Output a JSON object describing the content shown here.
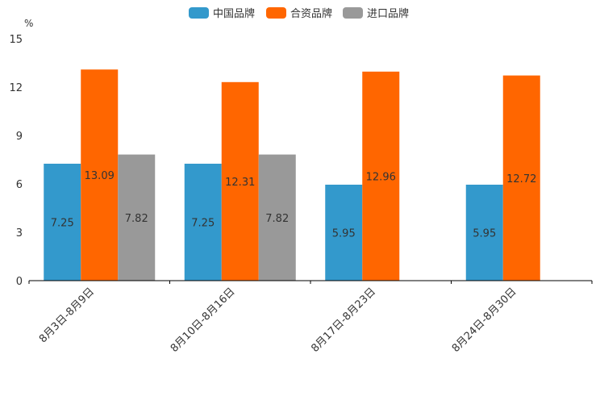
{
  "chart_data": {
    "type": "bar",
    "y_unit": "%",
    "ylim": [
      0,
      15
    ],
    "yticks": [
      0,
      3,
      6,
      9,
      12,
      15
    ],
    "categories": [
      "8月3日-8月9日",
      "8月10日-8月16日",
      "8月17日-8月23日",
      "8月24日-8月30日"
    ],
    "series": [
      {
        "name": "中国品牌",
        "color": "#3399cc",
        "values": [
          7.25,
          7.25,
          5.95,
          5.95
        ]
      },
      {
        "name": "合资品牌",
        "color": "#ff6600",
        "values": [
          13.09,
          12.31,
          12.96,
          12.72
        ]
      },
      {
        "name": "进口品牌",
        "color": "#999999",
        "values": [
          7.82,
          7.82,
          null,
          null
        ]
      }
    ],
    "legend_position": "top-center",
    "grid": false
  }
}
